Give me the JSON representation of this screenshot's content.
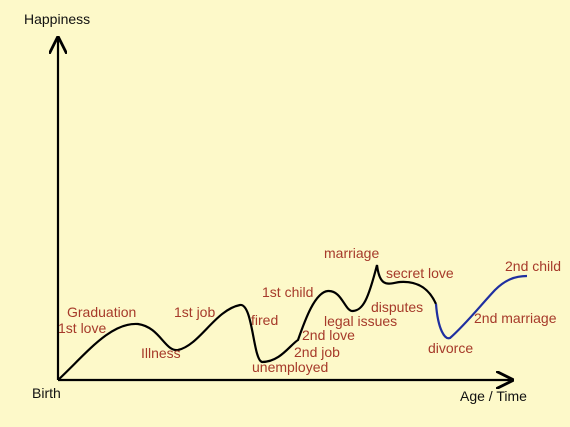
{
  "axes": {
    "y_label": "Happiness",
    "x_label": "Age / Time",
    "origin_label": "Birth"
  },
  "events": {
    "graduation": "Graduation",
    "first_love": "1st love",
    "illness": "Illness",
    "first_job": "1st job",
    "fired": "fired",
    "unemployed": "unemployed",
    "first_child": "1st child",
    "second_job": "2nd job",
    "second_love": "2nd love",
    "legal_issues": "legal issues",
    "marriage": "marriage",
    "secret_love": "secret love",
    "disputes": "disputes",
    "divorce": "divorce",
    "second_marriage": "2nd marriage",
    "second_child": "2nd child"
  },
  "colors": {
    "background": "#fdf9c9",
    "event_text": "#a63a2a",
    "life_curve": "#000000",
    "recovery_curve": "#1f2fa0"
  }
}
